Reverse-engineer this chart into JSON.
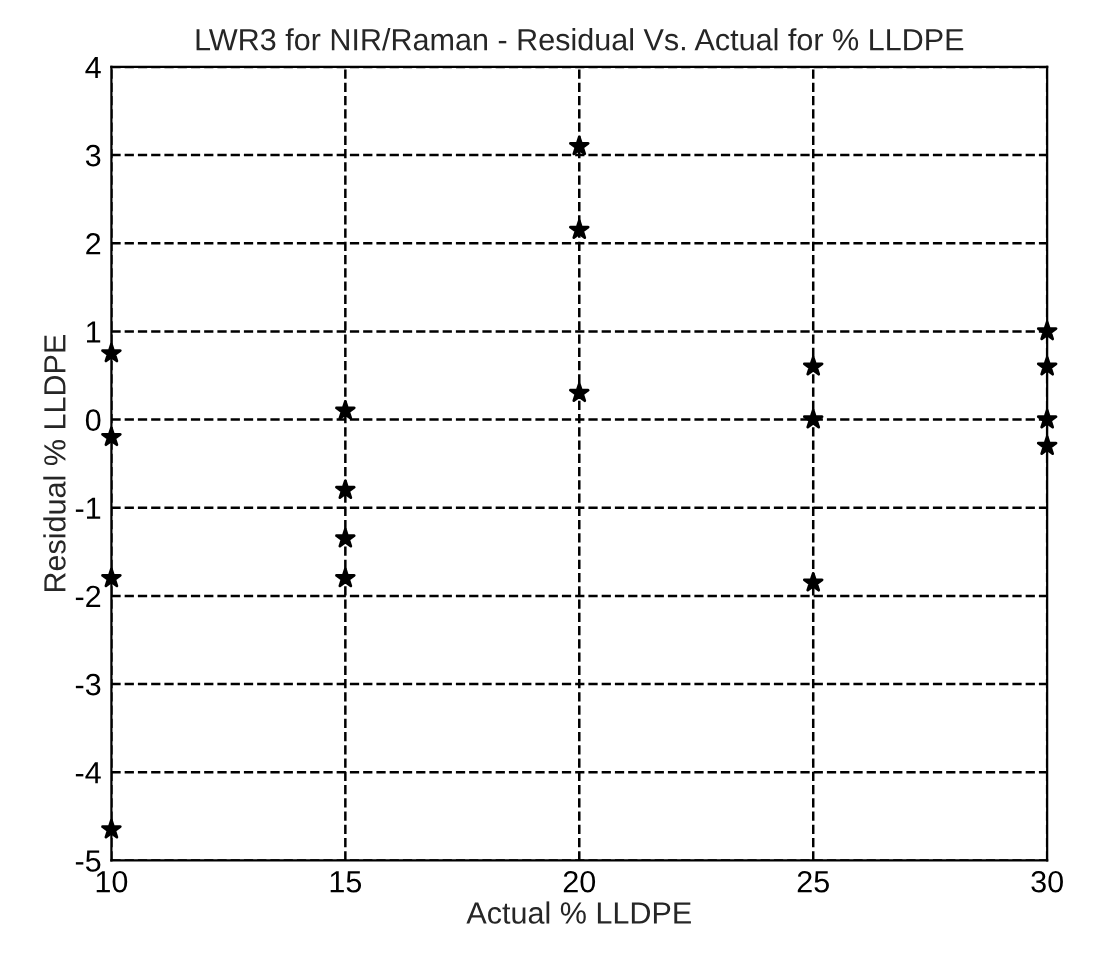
{
  "chart_data": {
    "type": "scatter",
    "title": "LWR3 for NIR/Raman - Residual Vs. Actual for % LLDPE",
    "xlabel": "Actual % LLDPE",
    "ylabel": "Residual % LLDPE",
    "series": [
      {
        "color": "#000000",
        "x": [
          10,
          10,
          10,
          10,
          15,
          15,
          15,
          15,
          20,
          20,
          20,
          25,
          25,
          25,
          30,
          30,
          30,
          30
        ],
        "values": [
          0.75,
          -0.2,
          -1.8,
          -4.65,
          0.1,
          -0.8,
          -1.35,
          -1.8,
          3.1,
          2.15,
          0.3,
          0.6,
          0.0,
          -1.85,
          1.0,
          0.6,
          0.0,
          -0.3
        ]
      }
    ],
    "xlim": [
      10,
      30
    ],
    "xticks": [
      10,
      15,
      20,
      25,
      30
    ],
    "ylim": [
      -5,
      4
    ],
    "yticks": [
      -5,
      -4,
      -3,
      -2,
      -1,
      0,
      1,
      2,
      3,
      4
    ],
    "grid": true,
    "marker": "star",
    "line_style": "dashed"
  }
}
